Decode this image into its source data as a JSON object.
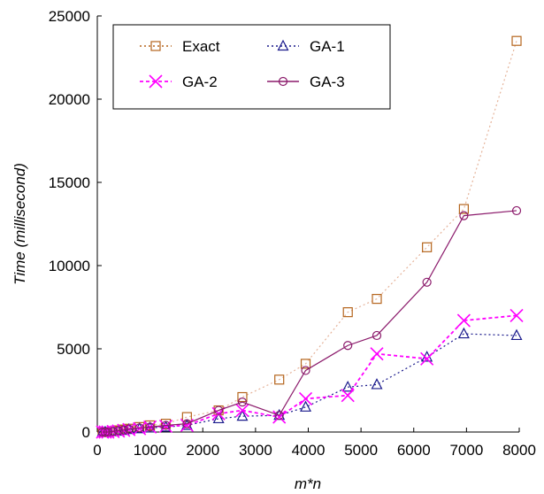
{
  "chart_data": {
    "type": "line",
    "xlabel": "m*n",
    "ylabel": "Time (millisecond)",
    "xlim": [
      0,
      8000
    ],
    "ylim": [
      0,
      25000
    ],
    "x_ticks": [
      0,
      1000,
      2000,
      3000,
      4000,
      5000,
      6000,
      7000,
      8000
    ],
    "y_ticks": [
      0,
      5000,
      10000,
      15000,
      20000,
      25000
    ],
    "grid": false,
    "legend": {
      "placement": "top-left",
      "columns": 2
    },
    "series": [
      {
        "name": "Exact",
        "color": "#b5651d",
        "line_color": "#e5b39a",
        "line_style": "dotted",
        "marker": "square",
        "x": [
          100,
          150,
          200,
          300,
          400,
          500,
          600,
          800,
          1000,
          1300,
          1700,
          2300,
          2750,
          3450,
          3950,
          4750,
          5300,
          6250,
          6950,
          7950
        ],
        "y": [
          0,
          0,
          0,
          50,
          100,
          150,
          200,
          300,
          400,
          500,
          900,
          1300,
          2100,
          3150,
          4100,
          7200,
          8000,
          11100,
          13400,
          23500
        ]
      },
      {
        "name": "GA-1",
        "color": "#1a1a8c",
        "line_color": "#1a1a8c",
        "line_style": "dotted",
        "marker": "triangle",
        "x": [
          100,
          150,
          200,
          300,
          400,
          500,
          600,
          800,
          1000,
          1300,
          1700,
          2300,
          2750,
          3450,
          3950,
          4750,
          5300,
          6250,
          6950,
          7950
        ],
        "y": [
          0,
          0,
          0,
          30,
          50,
          100,
          150,
          200,
          250,
          300,
          400,
          800,
          950,
          1000,
          1500,
          2700,
          2850,
          4500,
          5900,
          5800
        ]
      },
      {
        "name": "GA-2",
        "color": "#ff00ff",
        "line_color": "#ff00ff",
        "line_style": "dashed",
        "marker": "x",
        "x": [
          100,
          150,
          200,
          300,
          400,
          500,
          600,
          800,
          1000,
          1300,
          1700,
          2300,
          2750,
          3450,
          3950,
          4750,
          5300,
          6250,
          6950,
          7950
        ],
        "y": [
          0,
          0,
          0,
          30,
          60,
          100,
          150,
          200,
          300,
          350,
          400,
          1100,
          1300,
          900,
          2000,
          2200,
          4700,
          4400,
          6700,
          7000
        ]
      },
      {
        "name": "GA-3",
        "color": "#8b1a6b",
        "line_color": "#8b1a6b",
        "line_style": "solid",
        "marker": "circle",
        "x": [
          100,
          150,
          200,
          300,
          400,
          500,
          600,
          800,
          1000,
          1300,
          1700,
          2300,
          2750,
          3450,
          3950,
          4750,
          5300,
          6250,
          6950,
          7950
        ],
        "y": [
          0,
          0,
          0,
          40,
          80,
          120,
          180,
          250,
          300,
          400,
          500,
          1300,
          1800,
          1000,
          3700,
          5200,
          5800,
          9000,
          13000,
          13300
        ]
      }
    ]
  }
}
